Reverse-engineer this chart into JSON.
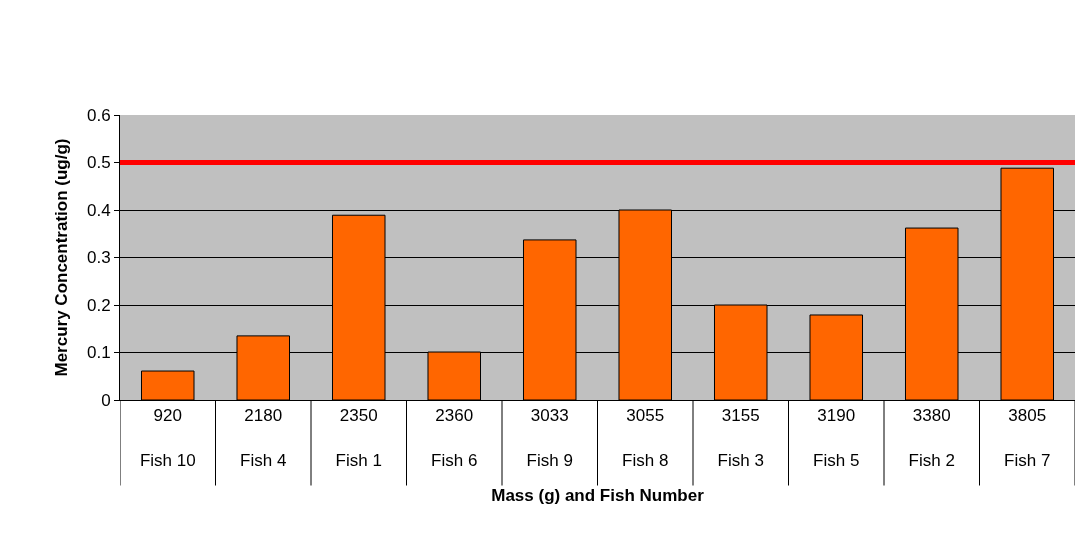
{
  "chart_data": {
    "type": "bar",
    "xlabel": "Mass (g) and Fish Number",
    "ylabel": "Mercury Concentration (ug/g)",
    "categories": [
      "920\nFish 10",
      "2180\nFish 4",
      "2350\nFish 1",
      "2360\nFish 6",
      "3033\nFish 9",
      "3055\nFish 8",
      "3155\nFish 3",
      "3190\nFish 5",
      "3380\nFish 2",
      "3805\nFish 7"
    ],
    "values": [
      0.061,
      0.135,
      0.389,
      0.101,
      0.337,
      0.4,
      0.2,
      0.179,
      0.362,
      0.488
    ],
    "color": "#ff6600",
    "ylim": [
      0,
      0.6
    ],
    "yticks": [
      0,
      0.1,
      0.2,
      0.3,
      0.4,
      0.5,
      0.6
    ],
    "grid": "y",
    "legend": false,
    "ref_lines": [
      {
        "axis": "y",
        "value": 0.5,
        "color": "#ff0000"
      }
    ]
  }
}
